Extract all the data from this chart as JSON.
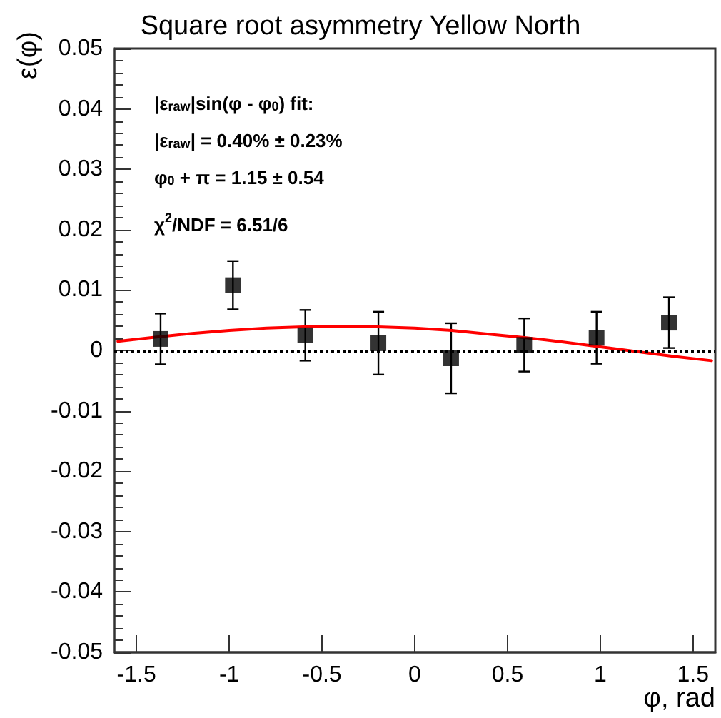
{
  "chart_data": {
    "type": "scatter",
    "title": "Square root asymmetry Yellow North",
    "xlabel": "φ, rad",
    "ylabel": "ε(φ)",
    "annotations": [
      "|ε$_{raw}$|sin(φ - φ$_{0}$) fit:",
      "|ε$_{raw}$| = 0.40% ± 0.23%",
      "φ$_{0}$ + π = 1.15 ± 0.54",
      "χ$^{2}$/NDF = 6.51/6"
    ],
    "xlim": [
      -1.62,
      1.62
    ],
    "ylim": [
      -0.05,
      0.05
    ],
    "xticks": [
      -1.5,
      -1,
      -0.5,
      0,
      0.5,
      1,
      1.5
    ],
    "yticks": [
      -0.05,
      -0.04,
      -0.03,
      -0.02,
      -0.01,
      0,
      0.01,
      0.02,
      0.03,
      0.04,
      0.05
    ],
    "grid": false,
    "ref_lines": [
      {
        "axis": "y",
        "value": 0,
        "color": "#000000",
        "line_style": "dotted"
      }
    ],
    "series": [
      {
        "color": "#000000",
        "marker": "square",
        "x": [
          -1.37,
          -0.98,
          -0.59,
          -0.196,
          0.196,
          0.59,
          0.98,
          1.37
        ],
        "values": [
          0.0019,
          0.0108,
          0.0025,
          0.0012,
          -0.0013,
          0.0009,
          0.0021,
          0.0046
        ],
        "errors": [
          0.0042,
          0.004,
          0.0042,
          0.0052,
          0.0058,
          0.0044,
          0.0043,
          0.0042
        ]
      },
      {
        "type": "line",
        "color": "#ff0000",
        "marker": "none",
        "line_style": "solid",
        "x": [
          -1.6,
          -1.4,
          -1.2,
          -1.0,
          -0.8,
          -0.6,
          -0.4,
          -0.2,
          0,
          0.2,
          0.4,
          0.6,
          0.8,
          1.0,
          1.2,
          1.4,
          1.6
        ],
        "values": [
          0.0015,
          0.0022,
          0.0028,
          0.0033,
          0.0037,
          0.0039,
          0.004,
          0.0039,
          0.0037,
          0.0033,
          0.0027,
          0.0021,
          0.0014,
          0.0006,
          -0.0002,
          -0.001,
          -0.0017
        ]
      }
    ]
  }
}
